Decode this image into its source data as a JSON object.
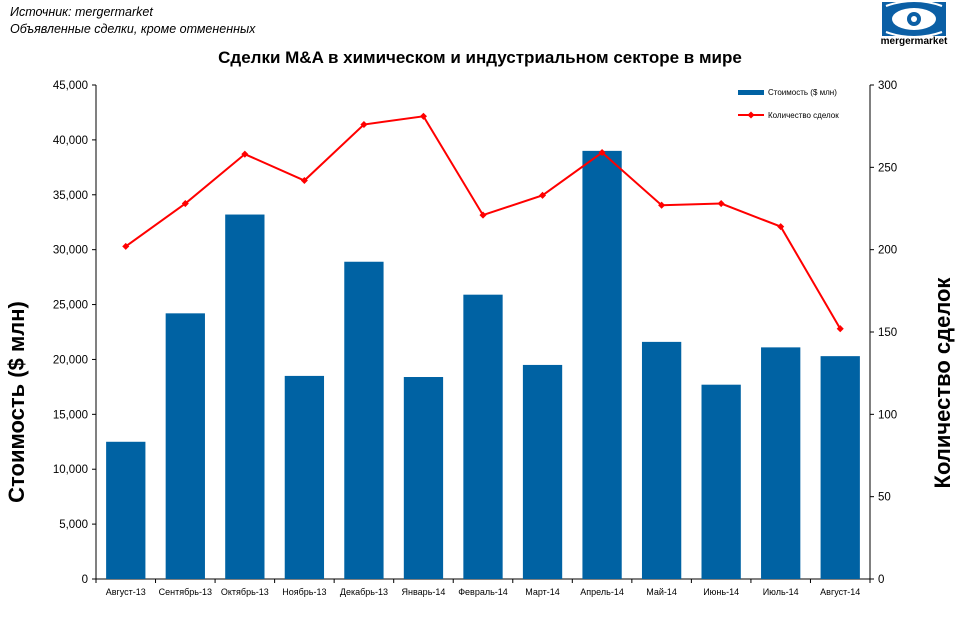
{
  "source": {
    "line1": "Источник: mergermarket",
    "line2": "Объявленные сделки, кроме отмененных"
  },
  "logo": {
    "text": "mergermarket",
    "icon": "eye-logo-icon"
  },
  "colors": {
    "bar": "#0062A3",
    "line": "#FF0000"
  },
  "chart_data": {
    "type": "bar",
    "title": "Сделки M&A в химическом и индустриальном секторе в мире",
    "ylabel": "Стоимость  ($ млн)",
    "y2label": "Количество сделок",
    "ylim": [
      0,
      45000
    ],
    "y2lim": [
      0,
      300
    ],
    "yticks": [
      "0",
      "5,000",
      "10,000",
      "15,000",
      "20,000",
      "25,000",
      "30,000",
      "35,000",
      "40,000",
      "45,000"
    ],
    "y2ticks": [
      "0",
      "50",
      "100",
      "150",
      "200",
      "250",
      "300"
    ],
    "legend_position": "top-right",
    "categories": [
      "Август-13",
      "Сентябрь-13",
      "Октябрь-13",
      "Ноябрь-13",
      "Декабрь-13",
      "Январь-14",
      "Февраль-14",
      "Март-14",
      "Апрель-14",
      "Май-14",
      "Июнь-14",
      "Июль-14",
      "Август-14"
    ],
    "series": [
      {
        "name": "Стоимость ($ млн)",
        "type": "bar",
        "axis": "left",
        "values": [
          12500,
          24200,
          33200,
          18500,
          28900,
          18400,
          25900,
          19500,
          39000,
          21600,
          17700,
          21100,
          20300
        ]
      },
      {
        "name": "Количество сделок",
        "type": "line",
        "axis": "right",
        "values": [
          202,
          228,
          258,
          242,
          276,
          281,
          221,
          233,
          259,
          227,
          228,
          214,
          152
        ]
      }
    ]
  }
}
